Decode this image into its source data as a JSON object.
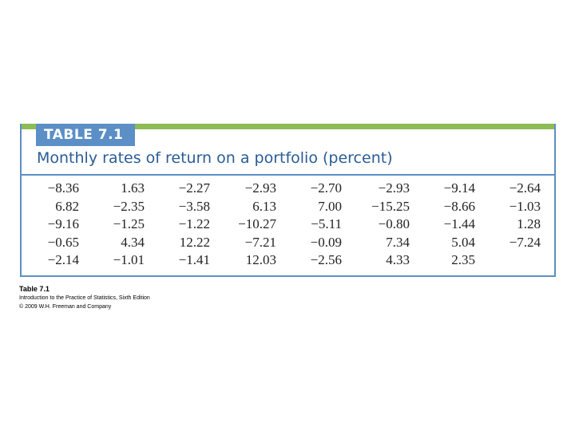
{
  "table": {
    "tab_label": "TABLE 7.1",
    "title": "Monthly rates of return on a portfolio (percent)",
    "rows": [
      [
        "−8.36",
        "1.63",
        "−2.27",
        "−2.93",
        "−2.70",
        "−2.93",
        "−9.14",
        "−2.64"
      ],
      [
        "6.82",
        "−2.35",
        "−3.58",
        "6.13",
        "7.00",
        "−15.25",
        "−8.66",
        "−1.03"
      ],
      [
        "−9.16",
        "−1.25",
        "−1.22",
        "−10.27",
        "−5.11",
        "−0.80",
        "−1.44",
        "1.28"
      ],
      [
        "−0.65",
        "4.34",
        "12.22",
        "−7.21",
        "−0.09",
        "7.34",
        "5.04",
        "−7.24"
      ],
      [
        "−2.14",
        "−1.01",
        "−1.41",
        "12.03",
        "−2.56",
        "4.33",
        "2.35",
        ""
      ]
    ]
  },
  "caption": {
    "title": "Table 7.1",
    "book": "Introduction to the Practice of Statistics, Sixth Edition",
    "copyright": "© 2009 W.H. Freeman and Company"
  },
  "colors": {
    "tab_blue": "#5b8fc6",
    "top_bar_green": "#8dbb55",
    "title_blue": "#2a5c96"
  }
}
